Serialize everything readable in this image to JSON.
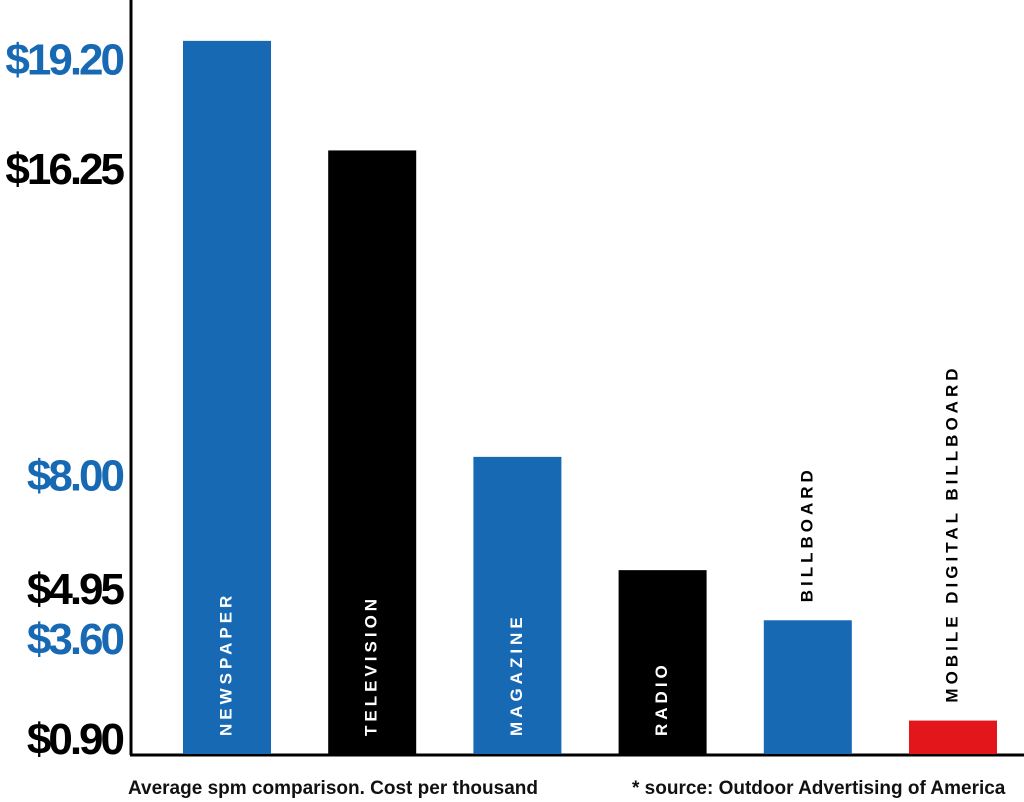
{
  "chart_data": {
    "type": "bar",
    "categories": [
      "NEWSPAPER",
      "TELEVISION",
      "MAGAZINE",
      "RADIO",
      "BILLBOARD",
      "MOBILE DIGITAL BILLBOARD"
    ],
    "values": [
      19.2,
      16.25,
      8.0,
      4.95,
      3.6,
      0.9
    ],
    "value_labels": [
      "$19.20",
      "$16.25",
      "$8.00",
      "$4.95",
      "$3.60",
      "$0.90"
    ],
    "colors": [
      "#1769b4",
      "#000000",
      "#1769b4",
      "#000000",
      "#1769b4",
      "#e3161b"
    ],
    "label_colors": [
      "#1769b4",
      "#000000",
      "#1769b4",
      "#000000",
      "#1769b4",
      "#000000"
    ],
    "ylim": [
      0,
      20.3
    ],
    "subtitle": "Average spm comparison. Cost per thousand",
    "note": "* source: Outdoor Advertising of America"
  }
}
